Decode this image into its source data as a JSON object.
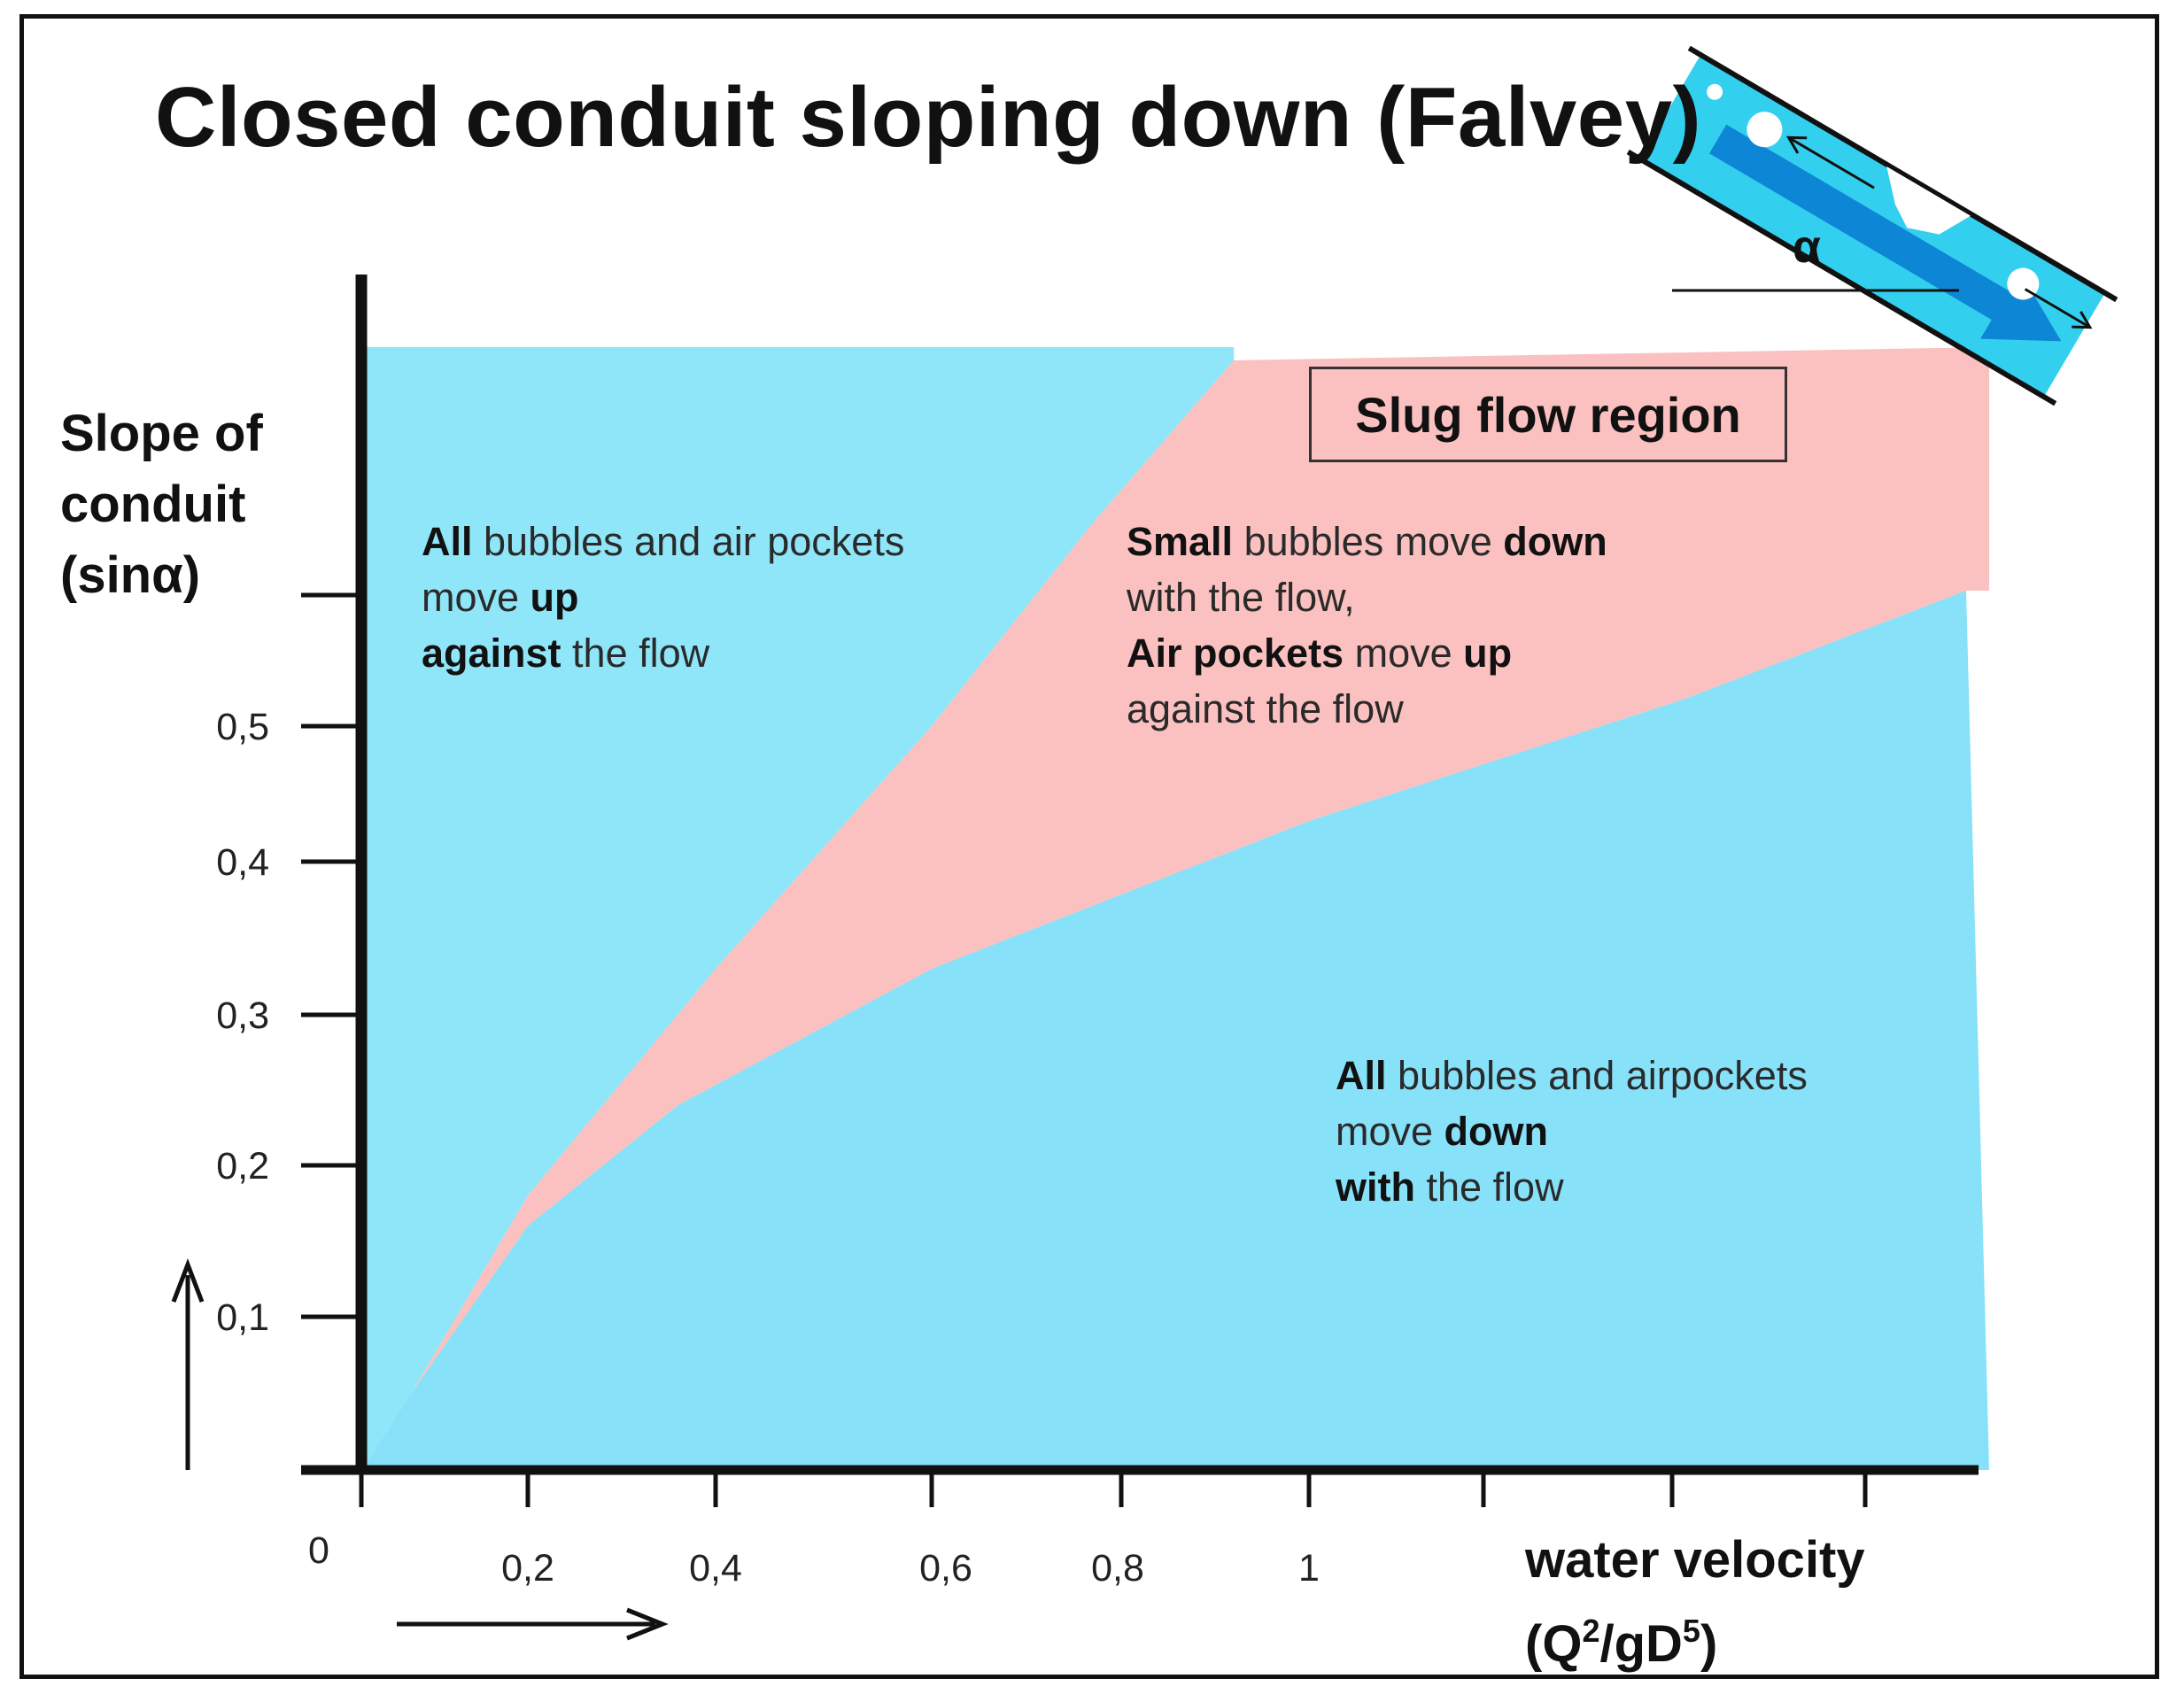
{
  "title": "Closed conduit sloping down (Falvey)",
  "y_axis_label": [
    "Slope of",
    "conduit",
    "(sinα)"
  ],
  "x_axis_label": {
    "line1": "water velocity",
    "line2_base": "(Q",
    "sup1": "2",
    "mid": "/gD",
    "sup2": "5",
    "end": ")"
  },
  "slug_region_label": "Slug flow region",
  "alpha_symbol": "α",
  "region_up": {
    "line1_bold": "All",
    "line1_rest": " bubbles and air pockets",
    "line2_rest": "move ",
    "line2_bold": "up",
    "line3_bold": "against",
    "line3_rest": " the flow"
  },
  "region_slug": {
    "line1_bold": "Small",
    "line1_rest": " bubbles  move ",
    "line1_bold2": "down",
    "line2_rest": "with the flow,",
    "line3_bold": "Air pockets",
    "line3_rest": " move ",
    "line3_bold2": "up",
    "line4_rest": "against the flow"
  },
  "region_down": {
    "line1_bold": "All",
    "line1_rest": " bubbles and airpockets",
    "line2_rest": "move ",
    "line2_bold": "down",
    "line3_bold": "with",
    "line3_rest": " the flow"
  },
  "colors": {
    "blue": "#8fe6f8",
    "blue_lower": "#86e1f9",
    "pink": "#fbc0c0",
    "axis": "#111111"
  },
  "chart_data": {
    "type": "area",
    "x_tick_labels": [
      "0",
      "0,2",
      "0,4",
      "0,6",
      "0,8",
      "1"
    ],
    "x_tick_values": [
      0,
      0.2,
      0.4,
      0.6,
      0.8,
      1
    ],
    "y_tick_labels": [
      "0,1",
      "0,2",
      "0,3",
      "0,4",
      "0,5"
    ],
    "y_tick_values": [
      0.1,
      0.2,
      0.3,
      0.4,
      0.5
    ],
    "series": [
      {
        "region": "All bubbles and air pockets move up against the flow",
        "boundary_lower": {
          "x": [
            0,
            0.06,
            0.2,
            0.4,
            0.6,
            0.77,
            0.92
          ],
          "y": [
            0,
            0.05,
            0.18,
            0.33,
            0.5,
            0.65,
            0.77
          ]
        }
      },
      {
        "region": "Slug flow region"
      },
      {
        "region": "All bubbles and airpockets move down with the flow",
        "boundary_upper": {
          "x": [
            0,
            0.06,
            0.2,
            0.36,
            0.6,
            1.0,
            1.4,
            1.7
          ],
          "y": [
            0,
            0.05,
            0.16,
            0.24,
            0.33,
            0.43,
            0.52,
            0.6
          ]
        }
      }
    ],
    "xlim": [
      0,
      1.7
    ],
    "ylim": [
      0,
      0.77
    ]
  }
}
